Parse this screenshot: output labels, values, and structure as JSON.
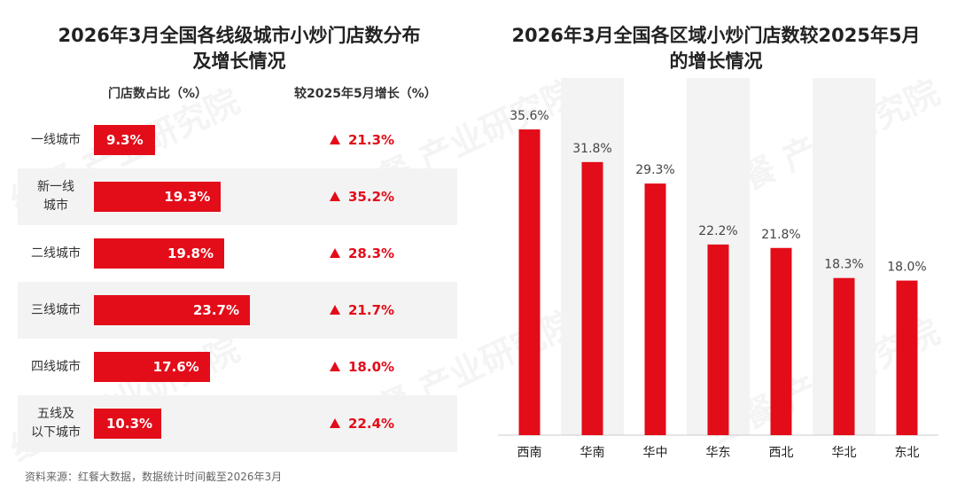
{
  "left_chart": {
    "title_line1": "2026年3月全国各线级城市小炒门店数分布",
    "title_line2": "及增长情况",
    "col_share": "门店数占比（%）",
    "col_growth": "较2025年5月增长（%）"
  },
  "right_chart": {
    "title_line1": "2026年3月全国各区域小炒门店数较2025年5月",
    "title_line2": "的增长情况"
  },
  "source": "资料来源：红餐大数据，数据统计时间截至2026年3月",
  "watermark": "红餐 产业研究院",
  "colors": {
    "bar": "#e30c19",
    "column_bg": "#f3f3f3"
  },
  "chart_data": [
    {
      "type": "bar",
      "orientation": "horizontal",
      "title": "2026年3月全国各线级城市小炒门店数分布及增长情况",
      "categories": [
        [
          "一线城市"
        ],
        [
          "新一线",
          "城市"
        ],
        [
          "二线城市"
        ],
        [
          "三线城市"
        ],
        [
          "四线城市"
        ],
        [
          "五线及",
          "以下城市"
        ]
      ],
      "series": [
        {
          "name": "门店数占比（%）",
          "values": [
            9.3,
            19.3,
            19.8,
            23.7,
            17.6,
            10.3
          ],
          "labels": [
            "9.3%",
            "19.3%",
            "19.8%",
            "23.7%",
            "17.6%",
            "10.3%"
          ]
        },
        {
          "name": "较2025年5月增长（%）",
          "values": [
            21.3,
            35.2,
            28.3,
            21.7,
            18.0,
            22.4
          ],
          "labels": [
            "21.3%",
            "35.2%",
            "28.3%",
            "21.7%",
            "18.0%",
            "22.4%"
          ]
        }
      ]
    },
    {
      "type": "bar",
      "title": "2026年3月全国各区域小炒门店数较2025年5月的增长情况",
      "categories": [
        "西南",
        "华南",
        "华中",
        "华东",
        "西北",
        "华北",
        "东北"
      ],
      "values": [
        35.6,
        31.8,
        29.3,
        22.2,
        21.8,
        18.3,
        18.0
      ],
      "labels": [
        "35.6%",
        "31.8%",
        "29.3%",
        "22.2%",
        "21.8%",
        "18.3%",
        "18.0%"
      ],
      "ylim": [
        0,
        40
      ]
    }
  ]
}
